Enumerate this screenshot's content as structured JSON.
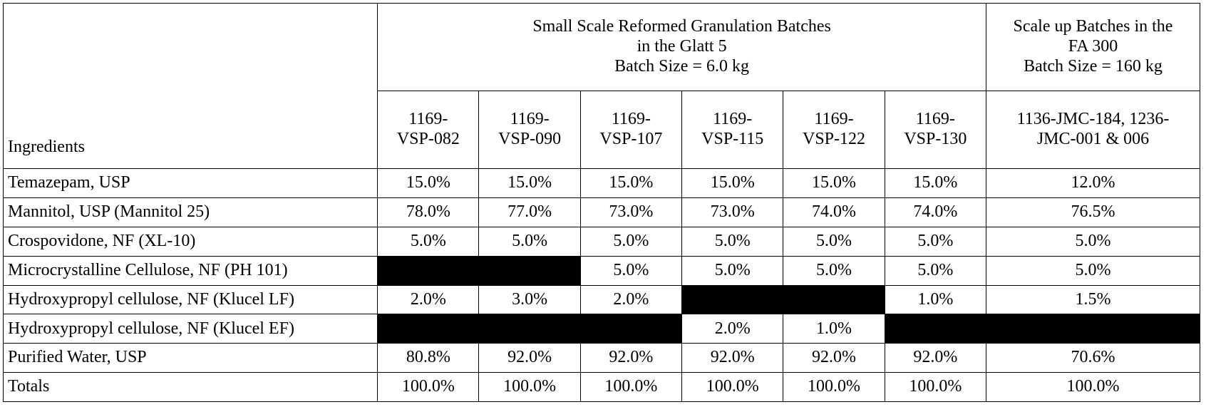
{
  "table": {
    "ingredients_header": "Ingredients",
    "group_small": {
      "line1": "Small Scale Reformed Granulation Batches",
      "line2": "in the Glatt 5",
      "line3": "Batch Size = 6.0 kg"
    },
    "group_scale": {
      "line1": "Scale up Batches in the",
      "line2": "FA 300",
      "line3": "Batch Size = 160 kg"
    },
    "batch_ids": [
      {
        "line1": "1169-",
        "line2": "VSP-082"
      },
      {
        "line1": "1169-",
        "line2": "VSP-090"
      },
      {
        "line1": "1169-",
        "line2": "VSP-107"
      },
      {
        "line1": "1169-",
        "line2": "VSP-115"
      },
      {
        "line1": "1169-",
        "line2": "VSP-122"
      },
      {
        "line1": "1169-",
        "line2": "VSP-130"
      },
      {
        "line1": "1136-JMC-184, 1236-",
        "line2": "JMC-001 & 006"
      }
    ],
    "rows": [
      {
        "ingredient": "Temazepam, USP",
        "values": [
          "15.0%",
          "15.0%",
          "15.0%",
          "15.0%",
          "15.0%",
          "15.0%",
          "12.0%"
        ]
      },
      {
        "ingredient": "Mannitol, USP (Mannitol 25)",
        "values": [
          "78.0%",
          "77.0%",
          "73.0%",
          "73.0%",
          "74.0%",
          "74.0%",
          "76.5%"
        ]
      },
      {
        "ingredient": "Crospovidone, NF (XL-10)",
        "values": [
          "5.0%",
          "5.0%",
          "5.0%",
          "5.0%",
          "5.0%",
          "5.0%",
          "5.0%"
        ]
      },
      {
        "ingredient": "Microcrystalline Cellulose, NF (PH 101)",
        "values": [
          null,
          null,
          "5.0%",
          "5.0%",
          "5.0%",
          "5.0%",
          "5.0%"
        ]
      },
      {
        "ingredient": "Hydroxypropyl cellulose, NF (Klucel LF)",
        "values": [
          "2.0%",
          "3.0%",
          "2.0%",
          null,
          null,
          "1.0%",
          "1.5%"
        ]
      },
      {
        "ingredient": "Hydroxypropyl cellulose, NF (Klucel EF)",
        "values": [
          null,
          null,
          null,
          "2.0%",
          "1.0%",
          null,
          null
        ]
      },
      {
        "ingredient": "Purified Water, USP",
        "values": [
          "80.8%",
          "92.0%",
          "92.0%",
          "92.0%",
          "92.0%",
          "92.0%",
          "70.6%"
        ]
      },
      {
        "ingredient": "Totals",
        "values": [
          "100.0%",
          "100.0%",
          "100.0%",
          "100.0%",
          "100.0%",
          "100.0%",
          "100.0%"
        ]
      }
    ]
  }
}
